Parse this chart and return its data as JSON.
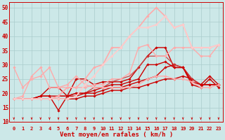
{
  "xlabel": "Vent moyen/en rafales ( km/h )",
  "background_color": "#cce8e8",
  "grid_color": "#aacccc",
  "xlim": [
    -0.5,
    23.5
  ],
  "ylim": [
    10,
    52
  ],
  "yticks": [
    10,
    15,
    20,
    25,
    30,
    35,
    40,
    45,
    50
  ],
  "xticks": [
    0,
    1,
    2,
    3,
    4,
    5,
    6,
    7,
    8,
    9,
    10,
    11,
    12,
    13,
    14,
    15,
    16,
    17,
    18,
    19,
    20,
    21,
    22,
    23
  ],
  "lines": [
    {
      "x": [
        0,
        1,
        2,
        3,
        4,
        5,
        6,
        7,
        8,
        9,
        10,
        11,
        12,
        13,
        14,
        15,
        16,
        17,
        18,
        19,
        20,
        21,
        22,
        23
      ],
      "y": [
        18,
        18,
        18,
        18,
        18,
        18,
        18,
        18,
        19,
        19,
        20,
        21,
        21,
        22,
        22,
        23,
        24,
        25,
        25,
        26,
        25,
        23,
        23,
        23
      ],
      "color": "#cc0000",
      "lw": 1.0,
      "marker": "D",
      "ms": 1.8
    },
    {
      "x": [
        0,
        1,
        2,
        3,
        4,
        5,
        6,
        7,
        8,
        9,
        10,
        11,
        12,
        13,
        14,
        15,
        16,
        17,
        18,
        19,
        20,
        21,
        22,
        23
      ],
      "y": [
        18,
        18,
        18,
        19,
        19,
        14,
        19,
        19,
        20,
        20,
        21,
        22,
        22,
        23,
        24,
        25,
        26,
        29,
        30,
        29,
        25,
        23,
        26,
        23
      ],
      "color": "#cc0000",
      "lw": 1.0,
      "marker": "D",
      "ms": 1.8
    },
    {
      "x": [
        0,
        1,
        2,
        3,
        4,
        5,
        6,
        7,
        8,
        9,
        10,
        11,
        12,
        13,
        14,
        15,
        16,
        17,
        18,
        19,
        20,
        21,
        22,
        23
      ],
      "y": [
        18,
        18,
        18,
        19,
        22,
        22,
        19,
        25,
        25,
        23,
        24,
        24,
        24,
        25,
        29,
        33,
        36,
        36,
        29,
        29,
        23,
        22,
        25,
        22
      ],
      "color": "#cc0000",
      "lw": 1.0,
      "marker": "D",
      "ms": 1.8
    },
    {
      "x": [
        0,
        1,
        2,
        3,
        4,
        5,
        6,
        7,
        8,
        9,
        10,
        11,
        12,
        13,
        14,
        15,
        16,
        17,
        18,
        19,
        20,
        21,
        22,
        23
      ],
      "y": [
        18,
        18,
        18,
        18,
        18,
        19,
        19,
        20,
        20,
        22,
        22,
        24,
        25,
        26,
        29,
        33,
        33,
        33,
        30,
        29,
        25,
        23,
        23,
        23
      ],
      "color": "#cc4444",
      "lw": 0.9,
      "marker": null,
      "ms": 1.8
    },
    {
      "x": [
        0,
        1,
        2,
        3,
        4,
        5,
        6,
        7,
        8,
        9,
        10,
        11,
        12,
        13,
        14,
        15,
        16,
        17,
        18,
        19,
        20,
        21,
        22,
        23
      ],
      "y": [
        18,
        18,
        18,
        19,
        19,
        19,
        19,
        20,
        20,
        21,
        22,
        23,
        23,
        24,
        25,
        30,
        30,
        31,
        29,
        29,
        24,
        23,
        23,
        23
      ],
      "color": "#cc0000",
      "lw": 1.0,
      "marker": "D",
      "ms": 1.8
    },
    {
      "x": [
        0,
        1,
        2,
        3,
        4,
        5,
        6,
        7,
        8,
        9,
        10,
        11,
        12,
        13,
        14,
        15,
        16,
        17,
        18,
        19,
        20,
        21,
        22,
        23
      ],
      "y": [
        29,
        22,
        25,
        26,
        29,
        22,
        22,
        22,
        22,
        23,
        23,
        25,
        25,
        27,
        36,
        37,
        33,
        33,
        36,
        36,
        36,
        33,
        33,
        37
      ],
      "color": "#ffaaaa",
      "lw": 1.0,
      "marker": "D",
      "ms": 1.8
    },
    {
      "x": [
        0,
        1,
        2,
        3,
        4,
        5,
        6,
        7,
        8,
        9,
        10,
        11,
        12,
        13,
        14,
        15,
        16,
        17,
        18,
        19,
        20,
        21,
        22,
        23
      ],
      "y": [
        18,
        19,
        26,
        29,
        22,
        22,
        23,
        26,
        23,
        22,
        22,
        22,
        22,
        22,
        23,
        25,
        26,
        26,
        25,
        25,
        24,
        22,
        22,
        23
      ],
      "color": "#ffaaaa",
      "lw": 1.0,
      "marker": "D",
      "ms": 1.8
    },
    {
      "x": [
        0,
        1,
        2,
        3,
        4,
        5,
        6,
        7,
        8,
        9,
        10,
        11,
        12,
        13,
        14,
        15,
        16,
        17,
        18,
        19,
        20,
        21,
        22,
        23
      ],
      "y": [
        18,
        18,
        18,
        18,
        18,
        19,
        22,
        22,
        25,
        29,
        30,
        36,
        36,
        40,
        43,
        47,
        50,
        47,
        43,
        44,
        36,
        36,
        36,
        37
      ],
      "color": "#ffaaaa",
      "lw": 1.2,
      "marker": "D",
      "ms": 1.8
    },
    {
      "x": [
        0,
        1,
        2,
        3,
        4,
        5,
        6,
        7,
        8,
        9,
        10,
        11,
        12,
        13,
        14,
        15,
        16,
        17,
        18,
        19,
        20,
        21,
        22,
        23
      ],
      "y": [
        18,
        18,
        18,
        18,
        18,
        18,
        18,
        19,
        23,
        26,
        30,
        33,
        36,
        40,
        43,
        43,
        44,
        47,
        43,
        44,
        36,
        36,
        36,
        37
      ],
      "color": "#ffcccc",
      "lw": 1.2,
      "marker": "D",
      "ms": 1.8
    }
  ],
  "arrow_color": "#cc0000",
  "tick_fontsize": 5.0,
  "xlabel_fontsize": 6.5,
  "ytick_fontsize": 5.5
}
